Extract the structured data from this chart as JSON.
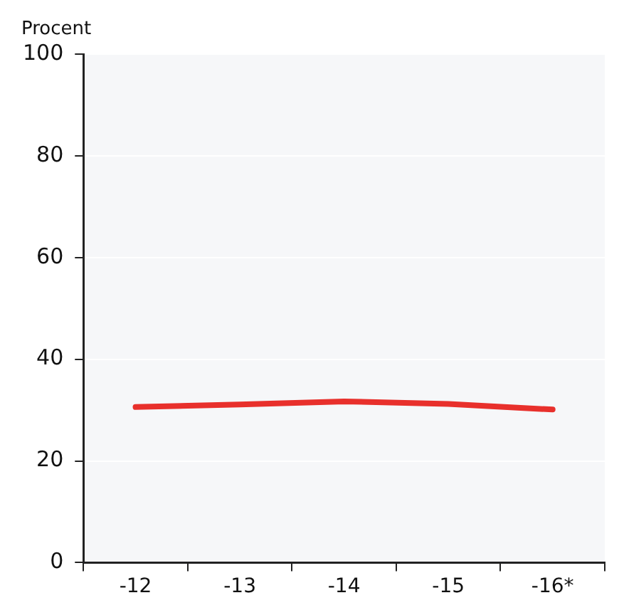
{
  "chart_data": {
    "type": "line",
    "ylabel": "Procent",
    "categories": [
      "-12",
      "-13",
      "-14",
      "-15",
      "-16*"
    ],
    "series": [
      {
        "color": "#e8302c",
        "values": [
          30.6,
          31.1,
          31.7,
          31.2,
          30.1
        ]
      }
    ],
    "ylim": [
      0,
      100
    ],
    "yticks": [
      0,
      20,
      40,
      60,
      80,
      100
    ],
    "grid": "y",
    "legend": false,
    "marker": "none",
    "line_style": "solid"
  }
}
